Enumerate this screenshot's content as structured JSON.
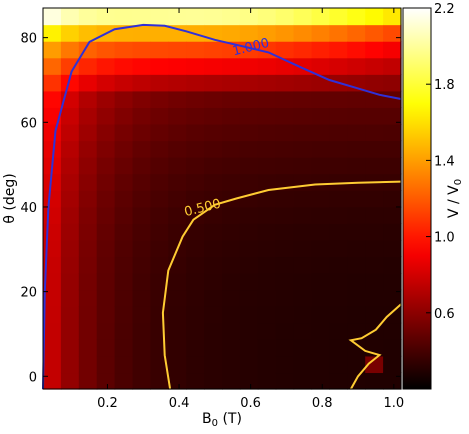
{
  "chart_data": {
    "type": "heatmap",
    "xlabel": "B",
    "xlabel_sub": "0",
    "xlabel_unit": " (T)",
    "ylabel": "θ (deg)",
    "colorbar_label": "V / V",
    "colorbar_label_sub": "0",
    "xlim": [
      0.02,
      1.02
    ],
    "ylim": [
      -3,
      87
    ],
    "clim": [
      0.2,
      2.2
    ],
    "colormap": "hot",
    "xticks": [
      {
        "value": 0.2,
        "label": "0.2"
      },
      {
        "value": 0.4,
        "label": "0.4"
      },
      {
        "value": 0.6,
        "label": "0.6"
      },
      {
        "value": 0.8,
        "label": "0.8"
      },
      {
        "value": 1.0,
        "label": "1.0"
      }
    ],
    "yticks": [
      {
        "value": 0,
        "label": "0"
      },
      {
        "value": 20,
        "label": "20"
      },
      {
        "value": 40,
        "label": "40"
      },
      {
        "value": 60,
        "label": "60"
      },
      {
        "value": 80,
        "label": "80"
      }
    ],
    "colorbar_ticks": [
      {
        "value": 0.6,
        "label": "0.6"
      },
      {
        "value": 1.0,
        "label": "1.0"
      },
      {
        "value": 1.4,
        "label": "1.4"
      },
      {
        "value": 1.8,
        "label": "1.8"
      },
      {
        "value": 2.2,
        "label": "2.2"
      }
    ],
    "contours": [
      {
        "level": 1.0,
        "label": "1.000",
        "color": "#3030d8",
        "label_at": [
          0.6,
          78
        ],
        "points": [
          [
            0.02,
            -3
          ],
          [
            0.025,
            20
          ],
          [
            0.035,
            40
          ],
          [
            0.055,
            58
          ],
          [
            0.1,
            72
          ],
          [
            0.15,
            79
          ],
          [
            0.22,
            82
          ],
          [
            0.3,
            83
          ],
          [
            0.36,
            82.8
          ],
          [
            0.42,
            81.5
          ],
          [
            0.5,
            79.5
          ],
          [
            0.56,
            78.3
          ],
          [
            0.65,
            76.5
          ],
          [
            0.74,
            73
          ],
          [
            0.82,
            70
          ],
          [
            0.9,
            68
          ],
          [
            0.96,
            66.5
          ],
          [
            1.02,
            65.5
          ]
        ]
      },
      {
        "level": 0.5,
        "label": "0.500",
        "color": "#ffcc33",
        "label_at": [
          0.465,
          40
        ],
        "points": [
          [
            0.375,
            -3
          ],
          [
            0.36,
            5
          ],
          [
            0.355,
            15
          ],
          [
            0.37,
            25
          ],
          [
            0.41,
            33
          ],
          [
            0.44,
            37
          ],
          [
            0.5,
            40.5
          ],
          [
            0.56,
            42
          ],
          [
            0.65,
            44
          ],
          [
            0.78,
            45.3
          ],
          [
            0.9,
            45.7
          ],
          [
            1.02,
            46
          ]
        ]
      },
      {
        "level": 0.5,
        "label": "",
        "color": "#ffcc33",
        "label_at": null,
        "points": [
          [
            1.02,
            17
          ],
          [
            0.98,
            14
          ],
          [
            0.95,
            11
          ],
          [
            0.91,
            9
          ],
          [
            0.88,
            8.5
          ],
          [
            0.92,
            6
          ],
          [
            0.96,
            5
          ],
          [
            0.93,
            3
          ],
          [
            0.9,
            0
          ],
          [
            0.88,
            -3
          ]
        ]
      }
    ]
  }
}
